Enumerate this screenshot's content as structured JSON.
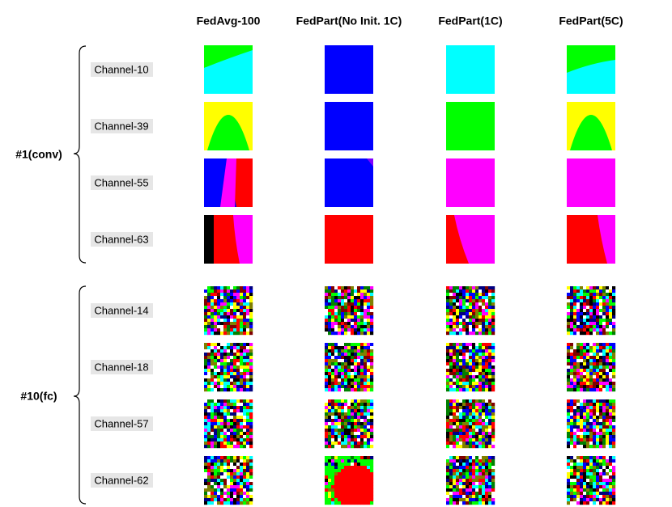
{
  "columns": [
    "FedAvg-100",
    "FedPart(No Init. 1C)",
    "FedPart(1C)",
    "FedPart(5C)"
  ],
  "groups": [
    {
      "label": "#1(conv)",
      "rows": [
        "Channel-10",
        "Channel-39",
        "Channel-55",
        "Channel-63"
      ]
    },
    {
      "label": "#10(fc)",
      "rows": [
        "Channel-14",
        "Channel-18",
        "Channel-57",
        "Channel-62"
      ]
    }
  ]
}
